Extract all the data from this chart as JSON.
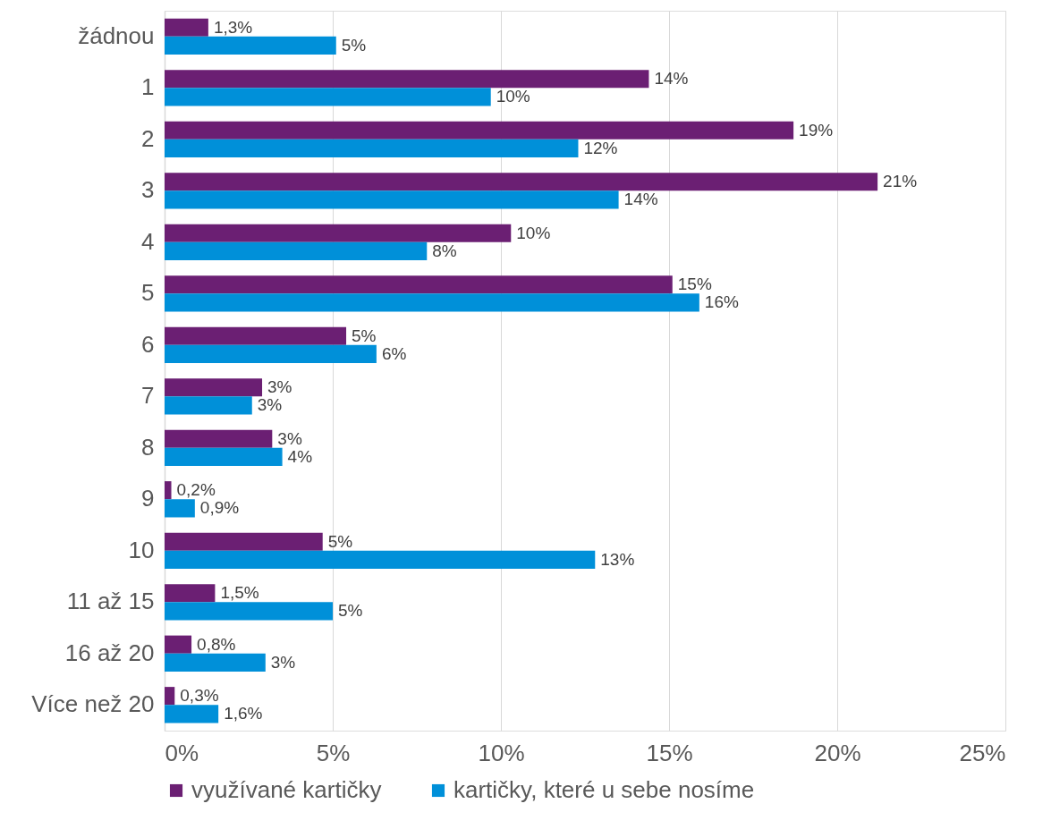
{
  "chart_data": {
    "type": "bar",
    "orientation": "horizontal",
    "categories": [
      "žádnou",
      "1",
      "2",
      "3",
      "4",
      "5",
      "6",
      "7",
      "8",
      "9",
      "10",
      "11 až 15",
      "16 až 20",
      "Více než 20"
    ],
    "series": [
      {
        "name": "využívané kartičky",
        "color": "#6b1f73",
        "values": [
          1.3,
          14.4,
          18.7,
          21.2,
          10.3,
          15.1,
          5.4,
          2.9,
          3.2,
          0.2,
          4.7,
          1.5,
          0.8,
          0.3
        ],
        "value_labels": [
          "1,3%",
          "14%",
          "19%",
          "21%",
          "10%",
          "15%",
          "5%",
          "3%",
          "3%",
          "0,2%",
          "5%",
          "1,5%",
          "0,8%",
          "0,3%"
        ]
      },
      {
        "name": "kartičky, které u sebe nosíme",
        "color": "#0090d9",
        "values": [
          5.1,
          9.7,
          12.3,
          13.5,
          7.8,
          15.9,
          6.3,
          2.6,
          3.5,
          0.9,
          12.8,
          5.0,
          3.0,
          1.6
        ],
        "value_labels": [
          "5%",
          "10%",
          "12%",
          "14%",
          "8%",
          "16%",
          "6%",
          "3%",
          "4%",
          "0,9%",
          "13%",
          "5%",
          "3%",
          "1,6%"
        ]
      }
    ],
    "xlim": [
      0,
      25
    ],
    "xticks": [
      {
        "value": 0,
        "label": "0%"
      },
      {
        "value": 5,
        "label": "5%"
      },
      {
        "value": 10,
        "label": "10%"
      },
      {
        "value": 15,
        "label": "15%"
      },
      {
        "value": 20,
        "label": "20%"
      },
      {
        "value": 25,
        "label": "25%"
      }
    ],
    "grid": "x",
    "legend": "bottom"
  }
}
